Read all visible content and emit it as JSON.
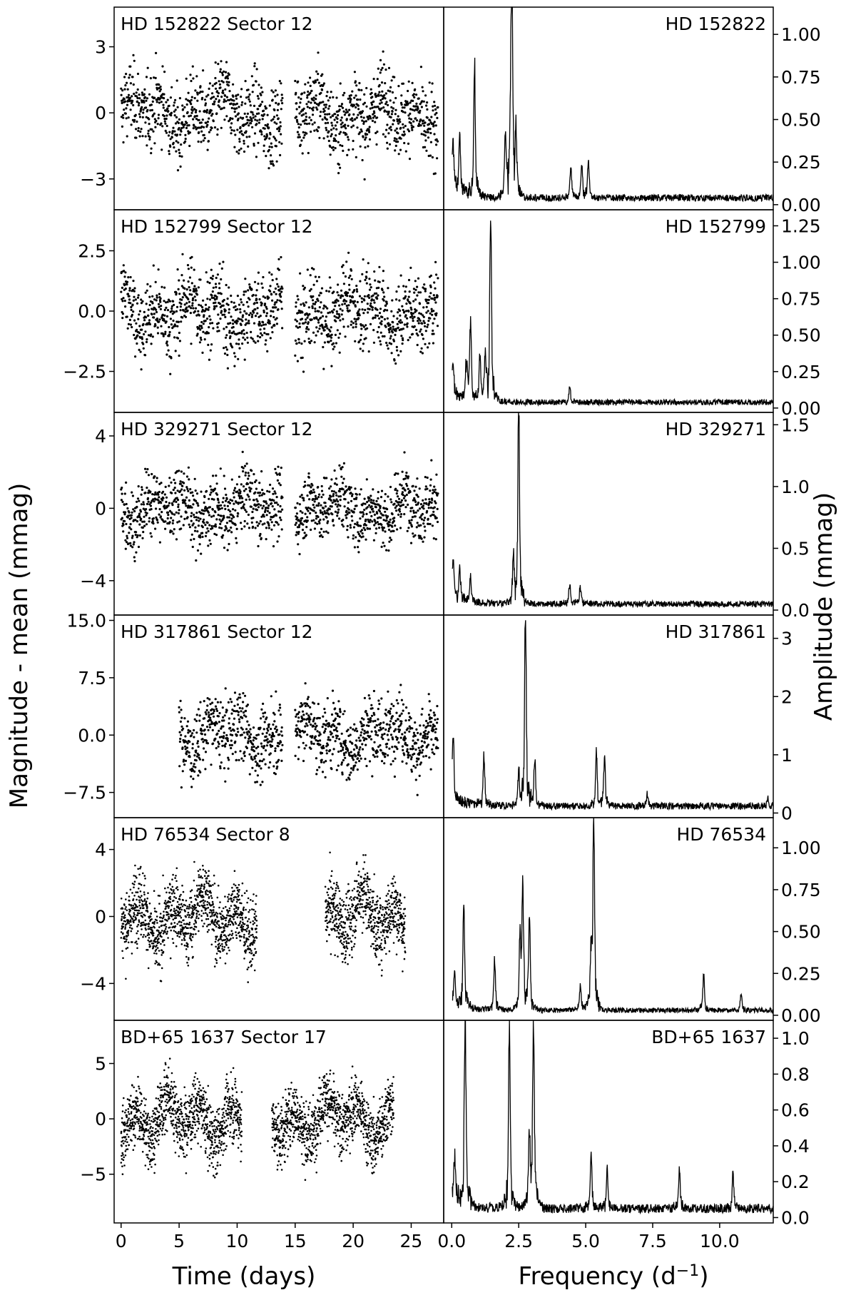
{
  "figure": {
    "left_axis_label": "Magnitude - mean (mmag)",
    "right_axis_label": "Amplitude (mmag)",
    "x_label_time": "Time (days)",
    "x_label_freq": "Frequency (d",
    "x_label_freq_sup": "−1",
    "x_label_freq_end": ")"
  },
  "chart_data": [
    {
      "type": "scatter",
      "panel": "light-curve",
      "title": "HD 152822 Sector 12",
      "xlim": [
        -0.6,
        27.8
      ],
      "ylim": [
        -4.4,
        4.8
      ],
      "yticks": [
        3,
        0,
        -3
      ],
      "yticklabels": [
        "3",
        "0",
        "−3"
      ],
      "segments": [
        [
          0.0,
          13.9
        ],
        [
          15.0,
          27.3
        ]
      ],
      "sigma": 1.3,
      "dense": false
    },
    {
      "type": "line",
      "panel": "periodogram",
      "title": "HD 152822",
      "xlim": [
        -0.3,
        12.0
      ],
      "ylim": [
        -0.03,
        1.16
      ],
      "yticks": [
        0.0,
        0.25,
        0.5,
        0.75,
        1.0
      ],
      "yticklabels": [
        "0.00",
        "0.25",
        "0.50",
        "0.75",
        "1.00"
      ],
      "peaks": [
        [
          0.05,
          0.28
        ],
        [
          0.3,
          0.35
        ],
        [
          0.85,
          0.73
        ],
        [
          2.0,
          0.33
        ],
        [
          2.2,
          0.5
        ],
        [
          2.25,
          1.13
        ],
        [
          2.4,
          0.35
        ],
        [
          4.45,
          0.18
        ],
        [
          4.85,
          0.2
        ],
        [
          5.1,
          0.2
        ]
      ],
      "floor": 0.04
    },
    {
      "type": "scatter",
      "panel": "light-curve",
      "title": "HD 152799 Sector 12",
      "xlim": [
        -0.6,
        27.8
      ],
      "ylim": [
        -4.2,
        4.2
      ],
      "yticks": [
        2.5,
        0.0,
        -2.5
      ],
      "yticklabels": [
        "2.5",
        "0.0",
        "−2.5"
      ],
      "segments": [
        [
          0.0,
          13.9
        ],
        [
          15.0,
          27.3
        ]
      ],
      "sigma": 1.2,
      "dense": false
    },
    {
      "type": "line",
      "panel": "periodogram",
      "title": "HD 152799",
      "xlim": [
        -0.3,
        12.0
      ],
      "ylim": [
        -0.03,
        1.36
      ],
      "yticks": [
        0.0,
        0.25,
        0.5,
        0.75,
        1.0,
        1.25
      ],
      "yticklabels": [
        "0.00",
        "0.25",
        "0.50",
        "0.75",
        "1.00",
        "1.25"
      ],
      "peaks": [
        [
          0.05,
          0.25
        ],
        [
          0.55,
          0.25
        ],
        [
          0.7,
          0.52
        ],
        [
          1.05,
          0.3
        ],
        [
          1.25,
          0.3
        ],
        [
          1.45,
          1.3
        ],
        [
          4.4,
          0.1
        ]
      ],
      "floor": 0.04
    },
    {
      "type": "scatter",
      "panel": "light-curve",
      "title": "HD 329271 Sector 12",
      "xlim": [
        -0.6,
        27.8
      ],
      "ylim": [
        -5.9,
        5.3
      ],
      "yticks": [
        4,
        0,
        -4
      ],
      "yticklabels": [
        "4",
        "0",
        "−4"
      ],
      "segments": [
        [
          0.0,
          13.9
        ],
        [
          15.0,
          27.3
        ]
      ],
      "sigma": 1.4,
      "dense": false
    },
    {
      "type": "line",
      "panel": "periodogram",
      "title": "HD 329271",
      "xlim": [
        -0.3,
        12.0
      ],
      "ylim": [
        -0.04,
        1.6
      ],
      "yticks": [
        0.0,
        0.5,
        1.0,
        1.5
      ],
      "yticklabels": [
        "0.0",
        "0.5",
        "1.0",
        "1.5"
      ],
      "peaks": [
        [
          0.05,
          0.32
        ],
        [
          0.3,
          0.22
        ],
        [
          0.7,
          0.2
        ],
        [
          2.3,
          0.35
        ],
        [
          2.5,
          1.55
        ],
        [
          4.4,
          0.15
        ],
        [
          4.8,
          0.14
        ]
      ],
      "floor": 0.05
    },
    {
      "type": "scatter",
      "panel": "light-curve",
      "title": "HD 317861 Sector 12",
      "xlim": [
        -0.6,
        27.8
      ],
      "ylim": [
        -10.8,
        15.7
      ],
      "yticks": [
        15.0,
        7.5,
        0.0,
        -7.5
      ],
      "yticklabels": [
        "15.0",
        "7.5",
        "0.0",
        "−7.5"
      ],
      "segments": [
        [
          5.0,
          13.9
        ],
        [
          15.0,
          27.3
        ]
      ],
      "sigma": 3.5,
      "dense": false
    },
    {
      "type": "line",
      "panel": "periodogram",
      "title": "HD 317861",
      "xlim": [
        -0.3,
        12.0
      ],
      "ylim": [
        -0.08,
        3.4
      ],
      "yticks": [
        0,
        1,
        2,
        3
      ],
      "yticklabels": [
        "0",
        "1",
        "2",
        "3"
      ],
      "peaks": [
        [
          0.05,
          1.05
        ],
        [
          1.2,
          0.85
        ],
        [
          2.5,
          0.5
        ],
        [
          2.75,
          3.2
        ],
        [
          3.1,
          0.75
        ],
        [
          5.4,
          0.9
        ],
        [
          5.7,
          0.8
        ],
        [
          7.3,
          0.2
        ],
        [
          11.8,
          0.15
        ]
      ],
      "floor": 0.12
    },
    {
      "type": "scatter",
      "panel": "light-curve",
      "title": "HD 76534 Sector 8",
      "xlim": [
        -0.6,
        27.8
      ],
      "ylim": [
        -6.2,
        5.9
      ],
      "yticks": [
        4,
        0,
        -4
      ],
      "yticklabels": [
        "4",
        "0",
        "−4"
      ],
      "segments": [
        [
          0.0,
          11.7
        ],
        [
          17.6,
          24.5
        ]
      ],
      "sigma": 1.8,
      "dense": true
    },
    {
      "type": "line",
      "panel": "periodogram",
      "title": "HD 76534",
      "xlim": [
        -0.3,
        12.0
      ],
      "ylim": [
        -0.03,
        1.18
      ],
      "yticks": [
        0.0,
        0.25,
        0.5,
        0.75,
        1.0
      ],
      "yticklabels": [
        "0.00",
        "0.25",
        "0.50",
        "0.75",
        "1.00"
      ],
      "peaks": [
        [
          0.1,
          0.2
        ],
        [
          0.45,
          0.6
        ],
        [
          1.6,
          0.3
        ],
        [
          2.55,
          0.4
        ],
        [
          2.65,
          0.72
        ],
        [
          2.9,
          0.56
        ],
        [
          4.8,
          0.15
        ],
        [
          5.2,
          0.3
        ],
        [
          5.3,
          1.1
        ],
        [
          9.4,
          0.2
        ],
        [
          10.8,
          0.1
        ]
      ],
      "floor": 0.03
    },
    {
      "type": "scatter",
      "panel": "light-curve",
      "title": "BD+65 1637 Sector 17",
      "xlim": [
        -0.6,
        27.8
      ],
      "ylim": [
        -9.4,
        8.9
      ],
      "yticks": [
        5,
        0,
        -5
      ],
      "yticklabels": [
        "5",
        "0",
        "−5"
      ],
      "segments": [
        [
          0.0,
          10.4
        ],
        [
          13.0,
          23.5
        ]
      ],
      "sigma": 2.5,
      "dense": true
    },
    {
      "type": "line",
      "panel": "periodogram",
      "title": "BD+65 1637",
      "xlim": [
        -0.3,
        12.0
      ],
      "ylim": [
        -0.03,
        1.1
      ],
      "yticks": [
        0.0,
        0.2,
        0.4,
        0.6,
        0.8,
        1.0
      ],
      "yticklabels": [
        "0.0",
        "0.2",
        "0.4",
        "0.6",
        "0.8",
        "1.0"
      ],
      "peaks": [
        [
          0.1,
          0.25
        ],
        [
          0.5,
          1.07
        ],
        [
          2.15,
          1.05
        ],
        [
          2.9,
          0.4
        ],
        [
          3.05,
          1.03
        ],
        [
          5.2,
          0.3
        ],
        [
          5.8,
          0.2
        ],
        [
          8.5,
          0.2
        ],
        [
          10.5,
          0.2
        ]
      ],
      "floor": 0.05
    }
  ],
  "x_axes": {
    "time": {
      "ticks": [
        0,
        5,
        10,
        15,
        20,
        25
      ],
      "labels": [
        "0",
        "5",
        "10",
        "15",
        "20",
        "25"
      ]
    },
    "frequency": {
      "ticks": [
        0.0,
        2.5,
        5.0,
        7.5,
        10.0
      ],
      "labels": [
        "0.0",
        "2.5",
        "5.0",
        "7.5",
        "10.0"
      ]
    }
  }
}
